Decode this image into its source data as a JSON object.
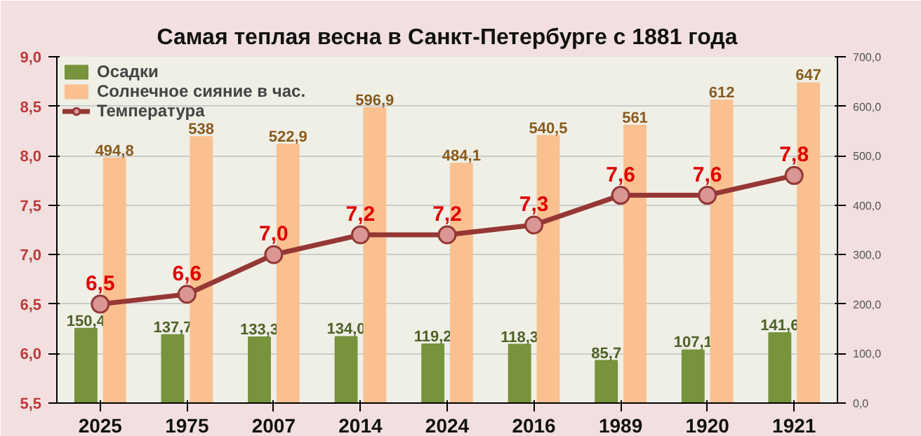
{
  "chart_data": {
    "type": "bar",
    "title": "Самая теплая весна в Санкт-Петербурге с 1881 года",
    "categories": [
      "2025",
      "1975",
      "2007",
      "2014",
      "2024",
      "2016",
      "1989",
      "1920",
      "1921"
    ],
    "series": [
      {
        "name": "Осадки",
        "axis": "y2",
        "color": "#77933c",
        "values": [
          150.4,
          137.7,
          133.3,
          134.0,
          119.2,
          118.3,
          85.7,
          107.1,
          141.6
        ],
        "value_labels": [
          "150,4",
          "137,7",
          "133,3",
          "134,0",
          "119,2",
          "118,3",
          "85,7",
          "107,1",
          "141,6"
        ]
      },
      {
        "name": "Солнечное сияние в час.",
        "axis": "y2",
        "color": "#fac090",
        "values": [
          494.8,
          538,
          522.9,
          596.9,
          484.1,
          540.5,
          561,
          612,
          647
        ],
        "value_labels": [
          "494,8",
          "538",
          "522,9",
          "596,9",
          "484,1",
          "540,5",
          "561",
          "612",
          "647"
        ]
      },
      {
        "name": "Температура",
        "type": "line",
        "color": "#953735",
        "marker": "circle",
        "values": [
          6.5,
          6.6,
          7.0,
          7.2,
          7.2,
          7.3,
          7.6,
          7.6,
          7.8
        ],
        "value_labels": [
          "6,5",
          "6,6",
          "7,0",
          "7,2",
          "7,2",
          "7,3",
          "7,6",
          "7,6",
          "7,8"
        ]
      }
    ],
    "ylim": [
      5.5,
      9.0
    ],
    "yticks": [
      {
        "value": 5.5,
        "label": "5,5"
      },
      {
        "value": 6.0,
        "label": "6,0"
      },
      {
        "value": 6.5,
        "label": "6,5"
      },
      {
        "value": 7.0,
        "label": "7,0"
      },
      {
        "value": 7.5,
        "label": "7,5"
      },
      {
        "value": 8.0,
        "label": "8,0"
      },
      {
        "value": 8.5,
        "label": "8,5"
      },
      {
        "value": 9.0,
        "label": "9,0"
      }
    ],
    "y2lim": [
      0,
      700
    ],
    "y2ticks": [
      {
        "value": 0,
        "label": "0,0"
      },
      {
        "value": 100,
        "label": "100,0"
      },
      {
        "value": 200,
        "label": "200,0"
      },
      {
        "value": 300,
        "label": "300,0"
      },
      {
        "value": 400,
        "label": "400,0"
      },
      {
        "value": 500,
        "label": "500,0"
      },
      {
        "value": 600,
        "label": "600,0"
      },
      {
        "value": 700,
        "label": "700,0"
      }
    ],
    "grid": "y",
    "legend": "top left"
  }
}
